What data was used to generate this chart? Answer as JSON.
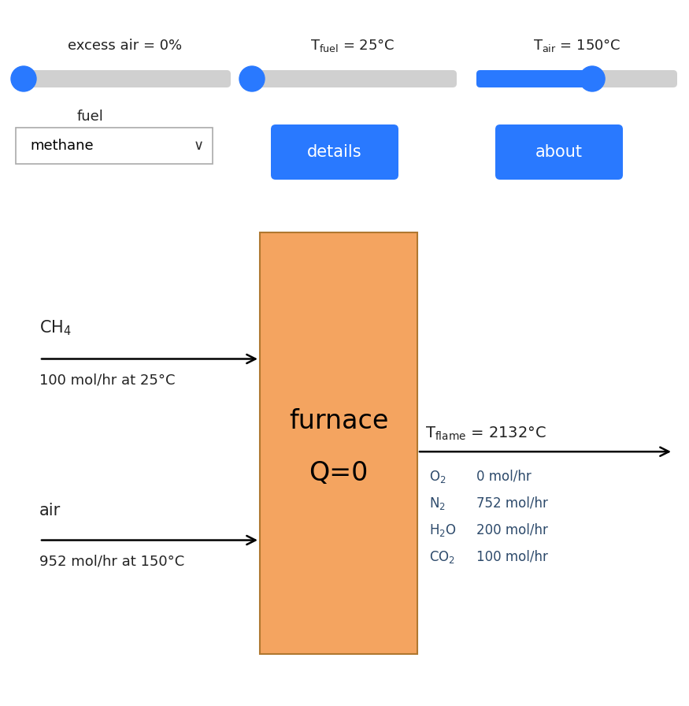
{
  "bg_color": "#ffffff",
  "blue": "#2979FF",
  "slider_track_color": "#d0d0d0",
  "slider1_label": "excess air = 0%",
  "slider1_value": 0.0,
  "slider2_value": 0.0,
  "slider3_value": 0.58,
  "fuel_label": "fuel",
  "fuel_value": "methane",
  "btn1_text": "details",
  "btn2_text": "about",
  "furnace_color": "#F4A460",
  "furnace_edge_color": "#b07830",
  "furnace_label1": "furnace",
  "furnace_label2": "Q=0",
  "fuel_stream_label2": "100 mol/hr at 25°C",
  "air_stream_label1": "air",
  "air_stream_label2": "952 mol/hr at 150°C",
  "text_color": "#222222",
  "stream_text_color": "#222222",
  "output_text_color": "#2d4a6b"
}
